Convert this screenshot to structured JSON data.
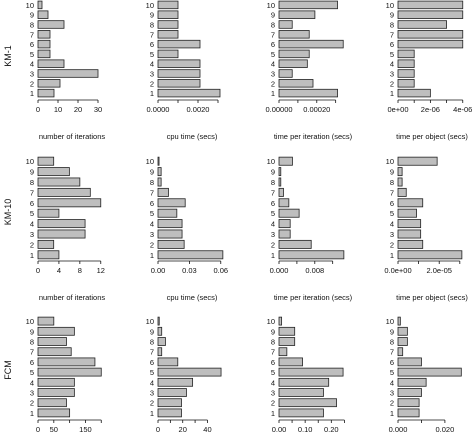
{
  "row_labels": [
    "KM-1",
    "KM-10",
    "FCM"
  ],
  "chart_data": [
    {
      "type": "bar",
      "orientation": "horizontal",
      "row": 0,
      "col": 0,
      "categories": [
        "1",
        "2",
        "3",
        "4",
        "5",
        "6",
        "7",
        "8",
        "9",
        "10"
      ],
      "values": [
        8,
        11,
        30,
        13,
        6,
        6,
        6,
        13,
        5,
        2
      ],
      "xlim": [
        0,
        34
      ],
      "ticks": [
        0,
        10,
        20,
        30
      ],
      "tick_labels": [
        "0",
        "10",
        "20",
        "30"
      ],
      "xlabel": "number of iterations"
    },
    {
      "type": "bar",
      "orientation": "horizontal",
      "row": 0,
      "col": 1,
      "categories": [
        "1",
        "2",
        "3",
        "4",
        "5",
        "6",
        "7",
        "8",
        "9",
        "10"
      ],
      "values": [
        0.0031,
        0.0021,
        0.0021,
        0.0021,
        0.001,
        0.0021,
        0.001,
        0.001,
        0.001,
        0.001
      ],
      "xlim": [
        0,
        0.0034
      ],
      "ticks": [
        0,
        0.001,
        0.002,
        0.003
      ],
      "tick_labels": [
        "0.0000",
        "",
        "0.0020",
        ""
      ],
      "xlabel": "cpu time (secs)"
    },
    {
      "type": "bar",
      "orientation": "horizontal",
      "row": 0,
      "col": 2,
      "categories": [
        "1",
        "2",
        "3",
        "4",
        "5",
        "6",
        "7",
        "8",
        "9",
        "10"
      ],
      "values": [
        0.00031,
        0.00018,
        7e-05,
        0.00015,
        0.00016,
        0.00034,
        0.00016,
        7e-05,
        0.00019,
        0.00031
      ],
      "xlim": [
        0,
        0.00036
      ],
      "ticks": [
        0,
        0.0001,
        0.0002,
        0.0003
      ],
      "tick_labels": [
        "0.00000",
        "",
        "0.00020",
        ""
      ],
      "xlabel": "time per iteration (secs)"
    },
    {
      "type": "bar",
      "orientation": "horizontal",
      "row": 0,
      "col": 3,
      "categories": [
        "1",
        "2",
        "3",
        "4",
        "5",
        "6",
        "7",
        "8",
        "9",
        "10"
      ],
      "values": [
        2e-06,
        1e-06,
        1e-06,
        1e-06,
        1e-06,
        4e-06,
        4e-06,
        3e-06,
        4e-06,
        4e-06
      ],
      "xlim": [
        0,
        4.2e-06
      ],
      "ticks": [
        0,
        1e-06,
        2e-06,
        3e-06,
        4e-06
      ],
      "tick_labels": [
        "0e+00",
        "",
        "2e-06",
        "",
        "4e-06"
      ],
      "xlabel": "time per object (secs)"
    },
    {
      "type": "bar",
      "orientation": "horizontal",
      "row": 1,
      "col": 0,
      "categories": [
        "1",
        "2",
        "3",
        "4",
        "5",
        "6",
        "7",
        "8",
        "9",
        "10"
      ],
      "values": [
        4,
        3,
        9,
        9,
        4,
        12,
        10,
        8,
        6,
        3
      ],
      "xlim": [
        0,
        13
      ],
      "ticks": [
        0,
        4,
        8,
        12
      ],
      "tick_labels": [
        "0",
        "4",
        "8",
        "12"
      ],
      "xlabel": "number of iterations"
    },
    {
      "type": "bar",
      "orientation": "horizontal",
      "row": 1,
      "col": 1,
      "categories": [
        "1",
        "2",
        "3",
        "4",
        "5",
        "6",
        "7",
        "8",
        "9",
        "10"
      ],
      "values": [
        0.062,
        0.025,
        0.023,
        0.023,
        0.018,
        0.026,
        0.01,
        0.003,
        0.003,
        0.001
      ],
      "xlim": [
        0,
        0.065
      ],
      "ticks": [
        0,
        0.03,
        0.06
      ],
      "tick_labels": [
        "0.00",
        "0.03",
        "0.06"
      ],
      "xlabel": "cpu time (secs)"
    },
    {
      "type": "bar",
      "orientation": "horizontal",
      "row": 1,
      "col": 2,
      "categories": [
        "1",
        "2",
        "3",
        "4",
        "5",
        "6",
        "7",
        "8",
        "9",
        "10"
      ],
      "values": [
        0.0145,
        0.0072,
        0.0025,
        0.0025,
        0.0045,
        0.0022,
        0.001,
        0.0004,
        0.0004,
        0.003
      ],
      "xlim": [
        0,
        0.0152
      ],
      "ticks": [
        0,
        0.004,
        0.008,
        0.012
      ],
      "tick_labels": [
        "0.000",
        "",
        "0.008",
        ""
      ],
      "xlabel": "time per iteration (secs)"
    },
    {
      "type": "bar",
      "orientation": "horizontal",
      "row": 1,
      "col": 3,
      "categories": [
        "1",
        "2",
        "3",
        "4",
        "5",
        "6",
        "7",
        "8",
        "9",
        "10"
      ],
      "values": [
        3.1e-05,
        1.2e-05,
        1.1e-05,
        1.1e-05,
        9e-06,
        1.2e-05,
        4e-06,
        2e-06,
        2e-06,
        1.9e-05
      ],
      "xlim": [
        0,
        3.3e-05
      ],
      "ticks": [
        0,
        1e-05,
        2e-05,
        3e-05
      ],
      "tick_labels": [
        "0.0e+00",
        "",
        "2.0e-05",
        ""
      ],
      "xlabel": "time per object (secs)"
    },
    {
      "type": "bar",
      "orientation": "horizontal",
      "row": 2,
      "col": 0,
      "categories": [
        "1",
        "2",
        "3",
        "4",
        "5",
        "6",
        "7",
        "8",
        "9",
        "10"
      ],
      "values": [
        100,
        90,
        115,
        115,
        200,
        180,
        105,
        90,
        115,
        50
      ],
      "xlim": [
        0,
        215
      ],
      "ticks": [
        0,
        50,
        100,
        150,
        200
      ],
      "tick_labels": [
        "0",
        "50",
        "",
        "150",
        ""
      ],
      "xlabel": ""
    },
    {
      "type": "bar",
      "orientation": "horizontal",
      "row": 2,
      "col": 1,
      "categories": [
        "1",
        "2",
        "3",
        "4",
        "5",
        "6",
        "7",
        "8",
        "9",
        "10"
      ],
      "values": [
        19,
        19,
        23,
        28,
        51,
        16,
        3,
        6,
        3,
        1
      ],
      "xlim": [
        0,
        55
      ],
      "ticks": [
        0,
        10,
        20,
        30,
        40
      ],
      "tick_labels": [
        "0",
        "",
        "20",
        "",
        "40"
      ],
      "xlabel": ""
    },
    {
      "type": "bar",
      "orientation": "horizontal",
      "row": 2,
      "col": 2,
      "categories": [
        "1",
        "2",
        "3",
        "4",
        "5",
        "6",
        "7",
        "8",
        "9",
        "10"
      ],
      "values": [
        0.17,
        0.22,
        0.17,
        0.19,
        0.245,
        0.09,
        0.03,
        0.06,
        0.06,
        0.01
      ],
      "xlim": [
        0,
        0.26
      ],
      "ticks": [
        0,
        0.05,
        0.1,
        0.15,
        0.2,
        0.25
      ],
      "tick_labels": [
        "0.00",
        "",
        "0.10",
        "",
        "0.20",
        ""
      ],
      "xlabel": ""
    },
    {
      "type": "bar",
      "orientation": "horizontal",
      "row": 2,
      "col": 3,
      "categories": [
        "1",
        "2",
        "3",
        "4",
        "5",
        "6",
        "7",
        "8",
        "9",
        "10"
      ],
      "values": [
        0.009,
        0.009,
        0.01,
        0.012,
        0.027,
        0.01,
        0.002,
        0.004,
        0.004,
        0.001
      ],
      "xlim": [
        0,
        0.029
      ],
      "ticks": [
        0,
        0.01,
        0.02
      ],
      "tick_labels": [
        "0.000",
        "",
        "0.020"
      ],
      "xlabel": ""
    }
  ]
}
